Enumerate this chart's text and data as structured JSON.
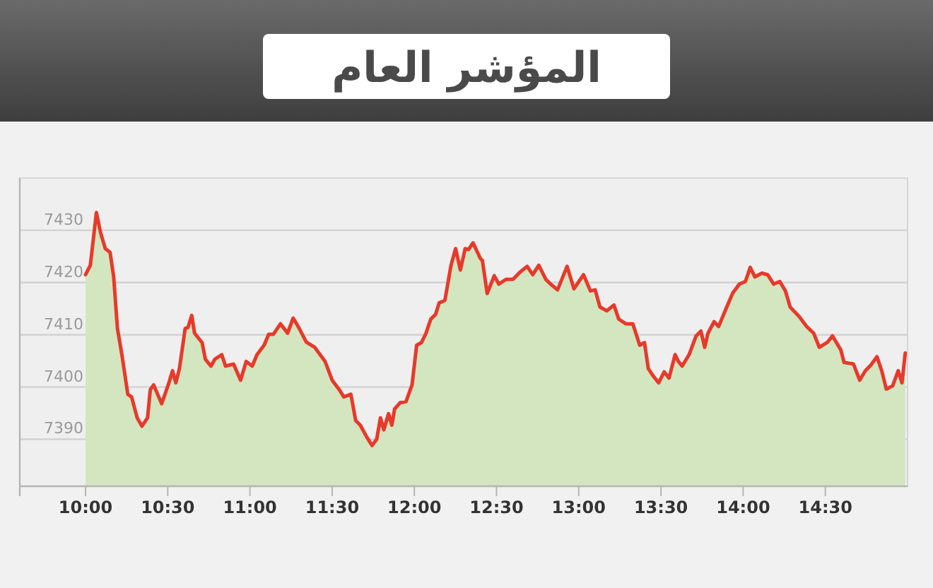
{
  "chart_data": {
    "type": "area",
    "title": "المؤشر العام",
    "x": [
      10.0,
      10.029,
      10.066,
      10.091,
      10.12,
      10.149,
      10.171,
      10.194,
      10.223,
      10.257,
      10.28,
      10.314,
      10.343,
      10.377,
      10.394,
      10.414,
      10.463,
      10.503,
      10.529,
      10.549,
      10.571,
      10.606,
      10.623,
      10.646,
      10.663,
      10.709,
      10.729,
      10.763,
      10.786,
      10.829,
      10.851,
      10.9,
      10.943,
      10.977,
      11.014,
      11.043,
      11.086,
      11.114,
      11.143,
      11.186,
      11.229,
      11.263,
      11.3,
      11.343,
      11.394,
      11.457,
      11.5,
      11.543,
      11.571,
      11.614,
      11.643,
      11.671,
      11.709,
      11.743,
      11.771,
      11.794,
      11.814,
      11.843,
      11.863,
      11.88,
      11.914,
      11.949,
      11.986,
      12.014,
      12.043,
      12.071,
      12.1,
      12.129,
      12.151,
      12.186,
      12.223,
      12.251,
      12.28,
      12.309,
      12.329,
      12.357,
      12.4,
      12.414,
      12.443,
      12.486,
      12.514,
      12.557,
      12.6,
      12.643,
      12.686,
      12.72,
      12.757,
      12.8,
      12.829,
      12.871,
      12.929,
      12.971,
      13.029,
      13.071,
      13.1,
      13.129,
      13.171,
      13.214,
      13.243,
      13.286,
      13.329,
      13.371,
      13.4,
      13.423,
      13.451,
      13.486,
      13.52,
      13.549,
      13.586,
      13.606,
      13.629,
      13.671,
      13.714,
      13.743,
      13.766,
      13.786,
      13.823,
      13.851,
      13.9,
      13.937,
      13.977,
      14.014,
      14.043,
      14.071,
      14.114,
      14.149,
      14.186,
      14.223,
      14.257,
      14.286,
      14.343,
      14.386,
      14.429,
      14.463,
      14.514,
      14.543,
      14.594,
      14.614,
      14.671,
      14.709,
      14.743,
      14.777,
      14.814,
      14.843,
      14.871,
      14.909,
      14.943,
      14.966,
      14.986
    ],
    "series": [
      {
        "color": "#e8392b",
        "values": [
          7421.5,
          7423.3,
          7433.4,
          7429.6,
          7426.5,
          7425.8,
          7421.1,
          7411.2,
          7405.8,
          7398.6,
          7398.1,
          7394.1,
          7392.5,
          7394.1,
          7399.5,
          7400.4,
          7396.8,
          7400.4,
          7403.1,
          7400.8,
          7403.5,
          7411.2,
          7411.4,
          7413.7,
          7410.3,
          7408.5,
          7405.3,
          7404.0,
          7405.3,
          7406.2,
          7404.0,
          7404.4,
          7401.3,
          7404.9,
          7404.0,
          7406.2,
          7408.0,
          7410.1,
          7410.1,
          7412.1,
          7410.3,
          7413.2,
          7411.2,
          7408.6,
          7407.6,
          7404.9,
          7401.3,
          7399.5,
          7398.1,
          7398.6,
          7393.6,
          7392.7,
          7390.5,
          7388.8,
          7390.0,
          7394.1,
          7391.8,
          7394.9,
          7392.7,
          7395.8,
          7397.0,
          7397.2,
          7400.4,
          7408.0,
          7408.5,
          7410.3,
          7413.0,
          7413.9,
          7416.1,
          7416.6,
          7423.3,
          7426.5,
          7422.4,
          7426.5,
          7426.3,
          7427.6,
          7424.7,
          7424.2,
          7417.9,
          7421.3,
          7419.7,
          7420.6,
          7420.6,
          7422.0,
          7423.1,
          7421.5,
          7423.3,
          7420.6,
          7419.7,
          7418.6,
          7423.1,
          7418.8,
          7421.5,
          7418.4,
          7418.6,
          7415.3,
          7414.6,
          7415.7,
          7413.0,
          7412.1,
          7412.1,
          7408.0,
          7408.5,
          7403.5,
          7402.2,
          7400.8,
          7402.9,
          7401.7,
          7406.2,
          7404.9,
          7404.0,
          7406.2,
          7409.8,
          7410.7,
          7407.6,
          7410.3,
          7412.5,
          7411.6,
          7415.3,
          7418.0,
          7419.7,
          7420.2,
          7422.9,
          7421.1,
          7421.8,
          7421.5,
          7419.7,
          7420.2,
          7418.4,
          7415.3,
          7413.4,
          7411.6,
          7410.3,
          7407.6,
          7408.6,
          7409.8,
          7407.1,
          7404.7,
          7404.4,
          7401.3,
          7403.1,
          7404.2,
          7405.8,
          7403.1,
          7399.6,
          7400.2,
          7403.1,
          7400.8,
          7406.5
        ]
      }
    ],
    "xlim": [
      9.6,
      15.0
    ],
    "ylim": [
      7381,
      7440
    ],
    "xticks": [
      {
        "value": 10,
        "label": "10:00"
      },
      {
        "value": 10.5,
        "label": "10:30"
      },
      {
        "value": 11,
        "label": "11:00"
      },
      {
        "value": 11.5,
        "label": "11:30"
      },
      {
        "value": 12,
        "label": "12:00"
      },
      {
        "value": 12.5,
        "label": "12:30"
      },
      {
        "value": 13,
        "label": "13:00"
      },
      {
        "value": 13.5,
        "label": "13:30"
      },
      {
        "value": 14,
        "label": "14:00"
      },
      {
        "value": 14.5,
        "label": "14:30"
      }
    ],
    "yticks": [
      7390,
      7400,
      7410,
      7420,
      7430
    ],
    "grid": "y"
  }
}
